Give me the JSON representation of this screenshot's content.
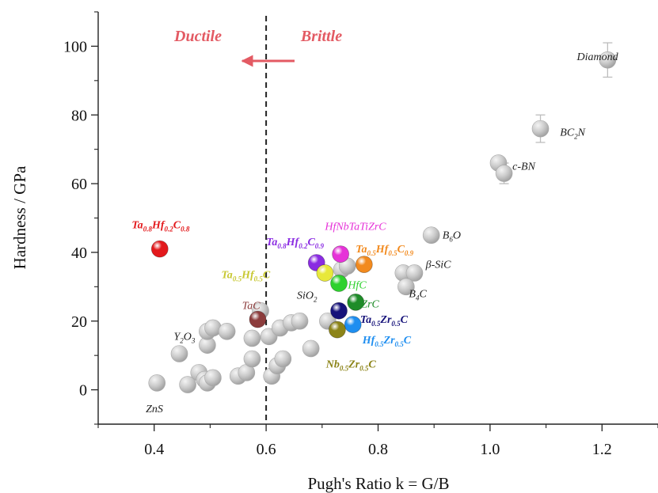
{
  "chart_data": {
    "type": "scatter",
    "xlabel": "Pugh's Ratio k = G/B",
    "ylabel": "Hardness / GPa",
    "xlim": [
      0.3,
      1.3
    ],
    "ylim": [
      -10,
      110
    ],
    "x_ticks": [
      "0.4",
      "0.6",
      "0.8",
      "1.0",
      "1.2"
    ],
    "y_ticks": [
      "0",
      "20",
      "40",
      "60",
      "80",
      "100"
    ],
    "x_tick_values": [
      0.4,
      0.6,
      0.8,
      1.0,
      1.2
    ],
    "y_tick_values": [
      0,
      20,
      40,
      60,
      80,
      100
    ],
    "divider_x": 0.6,
    "region_labels": {
      "ductile": "Ductile",
      "brittle": "Brittle"
    },
    "arrow_color": "#e35a63",
    "grey_points": [
      {
        "x": 0.405,
        "y": 2
      },
      {
        "x": 0.445,
        "y": 10.5
      },
      {
        "x": 0.46,
        "y": 1.5
      },
      {
        "x": 0.48,
        "y": 5
      },
      {
        "x": 0.49,
        "y": 3
      },
      {
        "x": 0.495,
        "y": 2
      },
      {
        "x": 0.505,
        "y": 3.5
      },
      {
        "x": 0.495,
        "y": 13
      },
      {
        "x": 0.495,
        "y": 17
      },
      {
        "x": 0.505,
        "y": 18
      },
      {
        "x": 0.53,
        "y": 17
      },
      {
        "x": 0.55,
        "y": 4
      },
      {
        "x": 0.565,
        "y": 5
      },
      {
        "x": 0.575,
        "y": 9
      },
      {
        "x": 0.575,
        "y": 15
      },
      {
        "x": 0.59,
        "y": 23
      },
      {
        "x": 0.605,
        "y": 15.5
      },
      {
        "x": 0.61,
        "y": 4
      },
      {
        "x": 0.62,
        "y": 7
      },
      {
        "x": 0.63,
        "y": 9
      },
      {
        "x": 0.625,
        "y": 18
      },
      {
        "x": 0.645,
        "y": 19.5
      },
      {
        "x": 0.66,
        "y": 20
      },
      {
        "x": 0.68,
        "y": 12
      },
      {
        "x": 0.71,
        "y": 20
      },
      {
        "x": 0.735,
        "y": 35
      },
      {
        "x": 0.745,
        "y": 36
      },
      {
        "x": 0.845,
        "y": 34
      },
      {
        "x": 0.865,
        "y": 34
      },
      {
        "x": 0.85,
        "y": 30
      },
      {
        "x": 0.895,
        "y": 45
      },
      {
        "x": 1.015,
        "y": 66
      },
      {
        "x": 1.025,
        "y": 63
      },
      {
        "x": 1.09,
        "y": 76
      },
      {
        "x": 1.21,
        "y": 96
      }
    ],
    "error_bars": [
      {
        "x": 1.21,
        "y": 96,
        "err": 5
      },
      {
        "x": 1.09,
        "y": 76,
        "err": 4
      },
      {
        "x": 1.025,
        "y": 63,
        "err": 3
      }
    ],
    "highlight_points": [
      {
        "x": 0.41,
        "y": 41,
        "color": "#e3191c"
      },
      {
        "x": 0.69,
        "y": 37,
        "color": "#8a2be2"
      },
      {
        "x": 0.733,
        "y": 39.5,
        "color": "#e632d8"
      },
      {
        "x": 0.775,
        "y": 36.5,
        "color": "#f28a1e"
      },
      {
        "x": 0.705,
        "y": 34,
        "color": "#e8e83a"
      },
      {
        "x": 0.73,
        "y": 31,
        "color": "#2ed12e"
      },
      {
        "x": 0.76,
        "y": 25.5,
        "color": "#1e8c28"
      },
      {
        "x": 0.73,
        "y": 23,
        "color": "#16127a"
      },
      {
        "x": 0.755,
        "y": 19,
        "color": "#1e8ef0"
      },
      {
        "x": 0.727,
        "y": 17.5,
        "color": "#8c8418"
      },
      {
        "x": 0.585,
        "y": 20.5,
        "color": "#8c3c3c"
      }
    ],
    "annotations": [
      {
        "x": 1.155,
        "y": 96,
        "color": "#222222",
        "parts": [
          [
            "Diamond",
            "n"
          ]
        ]
      },
      {
        "x": 1.125,
        "y": 74,
        "color": "#222222",
        "parts": [
          [
            "BC",
            "n"
          ],
          [
            "2",
            "s"
          ],
          [
            "N",
            "n"
          ]
        ]
      },
      {
        "x": 1.04,
        "y": 64,
        "color": "#222222",
        "parts": [
          [
            "c-BN",
            "n"
          ]
        ]
      },
      {
        "x": 0.915,
        "y": 44,
        "color": "#222222",
        "parts": [
          [
            "B",
            "n"
          ],
          [
            "6",
            "s"
          ],
          [
            "O",
            "n"
          ]
        ]
      },
      {
        "x": 0.885,
        "y": 35.5,
        "color": "#222222",
        "parts": [
          [
            "β-SiC",
            "n"
          ]
        ]
      },
      {
        "x": 0.855,
        "y": 27,
        "color": "#222222",
        "parts": [
          [
            "B",
            "n"
          ],
          [
            "4",
            "s"
          ],
          [
            "C",
            "n"
          ]
        ]
      },
      {
        "x": 0.36,
        "y": 47,
        "color": "#e3191c",
        "bold": true,
        "size": 15,
        "parts": [
          [
            "Ta",
            "n"
          ],
          [
            "0.8",
            "s"
          ],
          [
            "Hf",
            "n"
          ],
          [
            "0.2",
            "s"
          ],
          [
            "C",
            "n"
          ],
          [
            "0.8",
            "s"
          ]
        ]
      },
      {
        "x": 0.6,
        "y": 42,
        "color": "#8a2be2",
        "bold": true,
        "parts": [
          [
            "Ta",
            "n"
          ],
          [
            "0.8",
            "s"
          ],
          [
            "Hf",
            "n"
          ],
          [
            "0.2",
            "s"
          ],
          [
            "C",
            "n"
          ],
          [
            "0.9",
            "s"
          ]
        ]
      },
      {
        "x": 0.705,
        "y": 46.5,
        "color": "#e632d8",
        "parts": [
          [
            "HfNbTaTiZrC",
            "n"
          ]
        ]
      },
      {
        "x": 0.76,
        "y": 40,
        "color": "#f28a1e",
        "bold": true,
        "parts": [
          [
            "Ta",
            "n"
          ],
          [
            "0.5",
            "s"
          ],
          [
            "Hf",
            "n"
          ],
          [
            "0.5",
            "s"
          ],
          [
            "C",
            "n"
          ],
          [
            "0.9",
            "s"
          ]
        ]
      },
      {
        "x": 0.52,
        "y": 32.5,
        "color": "#c8c832",
        "bold": true,
        "parts": [
          [
            "Ta",
            "n"
          ],
          [
            "0.5",
            "s"
          ],
          [
            "Hf",
            "n"
          ],
          [
            "0.5",
            "s"
          ],
          [
            "C",
            "n"
          ]
        ]
      },
      {
        "x": 0.746,
        "y": 29.5,
        "color": "#2ed12e",
        "parts": [
          [
            "HfC",
            "n"
          ]
        ]
      },
      {
        "x": 0.77,
        "y": 24,
        "color": "#1e8c28",
        "parts": [
          [
            "ZrC",
            "n"
          ]
        ]
      },
      {
        "x": 0.655,
        "y": 26.5,
        "color": "#222222",
        "parts": [
          [
            "SiO",
            "n"
          ],
          [
            "2",
            "s"
          ]
        ]
      },
      {
        "x": 0.557,
        "y": 23.5,
        "color": "#8c3c3c",
        "parts": [
          [
            "TaC",
            "n"
          ]
        ]
      },
      {
        "x": 0.435,
        "y": 14.5,
        "color": "#222222",
        "parts": [
          [
            "Y",
            "n"
          ],
          [
            "2",
            "s"
          ],
          [
            "O",
            "n"
          ],
          [
            "3",
            "s"
          ]
        ]
      },
      {
        "x": 0.768,
        "y": 19.5,
        "color": "#16127a",
        "bold": true,
        "parts": [
          [
            "Ta",
            "n"
          ],
          [
            "0.5",
            "s"
          ],
          [
            "Zr",
            "n"
          ],
          [
            "0.5",
            "s"
          ],
          [
            "C",
            "n"
          ]
        ]
      },
      {
        "x": 0.772,
        "y": 13.5,
        "color": "#1e8ef0",
        "bold": true,
        "parts": [
          [
            "Hf",
            "n"
          ],
          [
            "0.5",
            "s"
          ],
          [
            "Zr",
            "n"
          ],
          [
            "0.5",
            "s"
          ],
          [
            "C",
            "n"
          ]
        ]
      },
      {
        "x": 0.707,
        "y": 6.5,
        "color": "#8c8418",
        "bold": true,
        "parts": [
          [
            "Nb",
            "n"
          ],
          [
            "0.5",
            "s"
          ],
          [
            "Zr",
            "n"
          ],
          [
            "0.5",
            "s"
          ],
          [
            "C",
            "n"
          ]
        ]
      },
      {
        "x": 0.385,
        "y": -6.5,
        "color": "#222222",
        "parts": [
          [
            "ZnS",
            "n"
          ]
        ]
      }
    ]
  }
}
